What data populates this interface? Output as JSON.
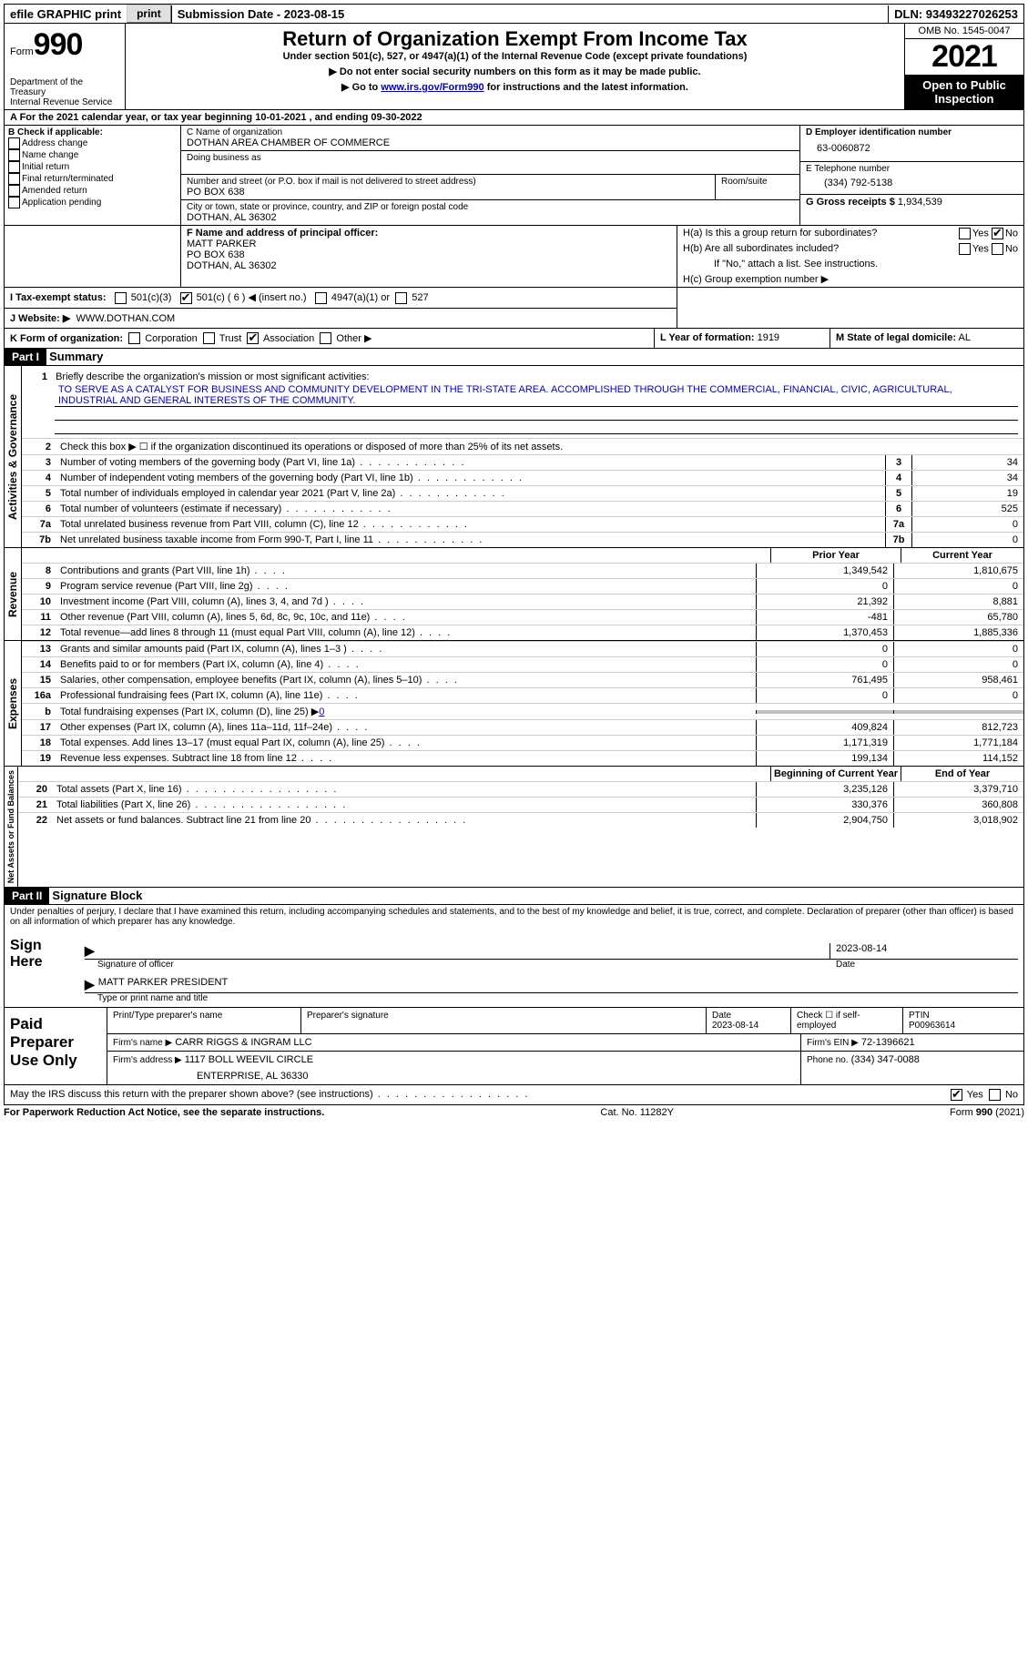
{
  "topbar": {
    "efile_label": "efile GRAPHIC print",
    "submission_label": "Submission Date - 2023-08-15",
    "dln_label": "DLN: 93493227026253"
  },
  "header": {
    "form_word": "Form",
    "form_number": "990",
    "dept1": "Department of the Treasury",
    "dept2": "Internal Revenue Service",
    "title": "Return of Organization Exempt From Income Tax",
    "subtitle": "Under section 501(c), 527, or 4947(a)(1) of the Internal Revenue Code (except private foundations)",
    "note1": "▶ Do not enter social security numbers on this form as it may be made public.",
    "note2_pre": "▶ Go to ",
    "note2_link": "www.irs.gov/Form990",
    "note2_post": " for instructions and the latest information.",
    "omb": "OMB No. 1545-0047",
    "year": "2021",
    "inspection": "Open to Public Inspection"
  },
  "lineA": {
    "text_pre": "A For the 2021 calendar year, or tax year beginning ",
    "begin": "10-01-2021",
    "mid": " , and ending ",
    "end": "09-30-2022"
  },
  "boxB": {
    "label": "B Check if applicable:",
    "opts": [
      "Address change",
      "Name change",
      "Initial return",
      "Final return/terminated",
      "Amended return",
      "Application pending"
    ]
  },
  "boxC": {
    "name_label": "C Name of organization",
    "name": "DOTHAN AREA CHAMBER OF COMMERCE",
    "dba_label": "Doing business as",
    "addr_label": "Number and street (or P.O. box if mail is not delivered to street address)",
    "room_label": "Room/suite",
    "addr": "PO BOX 638",
    "city_label": "City or town, state or province, country, and ZIP or foreign postal code",
    "city": "DOTHAN, AL  36302"
  },
  "boxD": {
    "label": "D Employer identification number",
    "value": "63-0060872"
  },
  "boxE": {
    "label": "E Telephone number",
    "value": "(334) 792-5138"
  },
  "boxG": {
    "label": "G Gross receipts $",
    "value": "1,934,539"
  },
  "boxF": {
    "label": "F  Name and address of principal officer:",
    "name": "MATT PARKER",
    "addr1": "PO BOX 638",
    "addr2": "DOTHAN, AL  36302"
  },
  "boxH": {
    "a_label": "H(a)  Is this a group return for subordinates?",
    "b_label": "H(b)  Are all subordinates included?",
    "b_note": "If \"No,\" attach a list. See instructions.",
    "c_label": "H(c)  Group exemption number ▶",
    "yes": "Yes",
    "no": "No"
  },
  "boxI": {
    "label": "I  Tax-exempt status:",
    "o1": "501(c)(3)",
    "o2": "501(c) ( 6 ) ◀ (insert no.)",
    "o3": "4947(a)(1) or",
    "o4": "527"
  },
  "boxJ": {
    "label": "J  Website: ▶",
    "value": "WWW.DOTHAN.COM"
  },
  "boxK": {
    "label": "K Form of organization:",
    "o1": "Corporation",
    "o2": "Trust",
    "o3": "Association",
    "o4": "Other ▶"
  },
  "boxL": {
    "label": "L Year of formation:",
    "value": "1919"
  },
  "boxM": {
    "label": "M State of legal domicile:",
    "value": "AL"
  },
  "partI": {
    "tag": "Part I",
    "title": "Summary",
    "q1_label": "Briefly describe the organization's mission or most significant activities:",
    "q1_text": "TO SERVE AS A CATALYST FOR BUSINESS AND COMMUNITY DEVELOPMENT IN THE TRI-STATE AREA. ACCOMPLISHED THROUGH THE COMMERCIAL, FINANCIAL, CIVIC, AGRICULTURAL, INDUSTRIAL AND GENERAL INTERESTS OF THE COMMUNITY.",
    "q2": "Check this box ▶ ☐ if the organization discontinued its operations or disposed of more than 25% of its net assets.",
    "sideA": "Activities & Governance",
    "sideR": "Revenue",
    "sideE": "Expenses",
    "sideN": "Net Assets or Fund Balances",
    "col_prior": "Prior Year",
    "col_current": "Current Year",
    "col_begin": "Beginning of Current Year",
    "col_end": "End of Year",
    "rows_gov": [
      {
        "n": "3",
        "t": "Number of voting members of the governing body (Part VI, line 1a)",
        "v": "34"
      },
      {
        "n": "4",
        "t": "Number of independent voting members of the governing body (Part VI, line 1b)",
        "v": "34"
      },
      {
        "n": "5",
        "t": "Total number of individuals employed in calendar year 2021 (Part V, line 2a)",
        "v": "19"
      },
      {
        "n": "6",
        "t": "Total number of volunteers (estimate if necessary)",
        "v": "525"
      },
      {
        "n": "7a",
        "t": "Total unrelated business revenue from Part VIII, column (C), line 12",
        "v": "0"
      },
      {
        "n": "7b",
        "t": "Net unrelated business taxable income from Form 990-T, Part I, line 11",
        "v": "0"
      }
    ],
    "rows_rev": [
      {
        "n": "8",
        "t": "Contributions and grants (Part VIII, line 1h)",
        "p": "1,349,542",
        "c": "1,810,675"
      },
      {
        "n": "9",
        "t": "Program service revenue (Part VIII, line 2g)",
        "p": "0",
        "c": "0"
      },
      {
        "n": "10",
        "t": "Investment income (Part VIII, column (A), lines 3, 4, and 7d )",
        "p": "21,392",
        "c": "8,881"
      },
      {
        "n": "11",
        "t": "Other revenue (Part VIII, column (A), lines 5, 6d, 8c, 9c, 10c, and 11e)",
        "p": "-481",
        "c": "65,780"
      },
      {
        "n": "12",
        "t": "Total revenue—add lines 8 through 11 (must equal Part VIII, column (A), line 12)",
        "p": "1,370,453",
        "c": "1,885,336"
      }
    ],
    "rows_exp": [
      {
        "n": "13",
        "t": "Grants and similar amounts paid (Part IX, column (A), lines 1–3 )",
        "p": "0",
        "c": "0"
      },
      {
        "n": "14",
        "t": "Benefits paid to or for members (Part IX, column (A), line 4)",
        "p": "0",
        "c": "0"
      },
      {
        "n": "15",
        "t": "Salaries, other compensation, employee benefits (Part IX, column (A), lines 5–10)",
        "p": "761,495",
        "c": "958,461"
      },
      {
        "n": "16a",
        "t": "Professional fundraising fees (Part IX, column (A), line 11e)",
        "p": "0",
        "c": "0"
      }
    ],
    "row16b": {
      "n": "b",
      "t": "Total fundraising expenses (Part IX, column (D), line 25) ▶",
      "v": "0"
    },
    "rows_exp2": [
      {
        "n": "17",
        "t": "Other expenses (Part IX, column (A), lines 11a–11d, 11f–24e)",
        "p": "409,824",
        "c": "812,723"
      },
      {
        "n": "18",
        "t": "Total expenses. Add lines 13–17 (must equal Part IX, column (A), line 25)",
        "p": "1,171,319",
        "c": "1,771,184"
      },
      {
        "n": "19",
        "t": "Revenue less expenses. Subtract line 18 from line 12",
        "p": "199,134",
        "c": "114,152"
      }
    ],
    "rows_net": [
      {
        "n": "20",
        "t": "Total assets (Part X, line 16)",
        "p": "3,235,126",
        "c": "3,379,710"
      },
      {
        "n": "21",
        "t": "Total liabilities (Part X, line 26)",
        "p": "330,376",
        "c": "360,808"
      },
      {
        "n": "22",
        "t": "Net assets or fund balances. Subtract line 21 from line 20",
        "p": "2,904,750",
        "c": "3,018,902"
      }
    ]
  },
  "partII": {
    "tag": "Part II",
    "title": "Signature Block",
    "perjury": "Under penalties of perjury, I declare that I have examined this return, including accompanying schedules and statements, and to the best of my knowledge and belief, it is true, correct, and complete. Declaration of preparer (other than officer) is based on all information of which preparer has any knowledge.",
    "sign_here": "Sign Here",
    "sig_officer": "Signature of officer",
    "sig_date": "Date",
    "sig_date_val": "2023-08-14",
    "sig_name": "MATT PARKER  PRESIDENT",
    "sig_name_label": "Type or print name and title",
    "paid": "Paid Preparer Use Only",
    "prep_name_label": "Print/Type preparer's name",
    "prep_sig_label": "Preparer's signature",
    "prep_date_label": "Date",
    "prep_date_val": "2023-08-14",
    "prep_check_label": "Check ☐ if self-employed",
    "ptin_label": "PTIN",
    "ptin_val": "P00963614",
    "firm_name_label": "Firm's name    ▶",
    "firm_name": "CARR RIGGS & INGRAM LLC",
    "firm_ein_label": "Firm's EIN ▶",
    "firm_ein": "72-1396621",
    "firm_addr_label": "Firm's address ▶",
    "firm_addr1": "1117 BOLL WEEVIL CIRCLE",
    "firm_addr2": "ENTERPRISE, AL  36330",
    "phone_label": "Phone no.",
    "phone": "(334) 347-0088",
    "discuss": "May the IRS discuss this return with the preparer shown above? (see instructions)"
  },
  "footer": {
    "left": "For Paperwork Reduction Act Notice, see the separate instructions.",
    "mid": "Cat. No. 11282Y",
    "right": "Form 990 (2021)"
  }
}
